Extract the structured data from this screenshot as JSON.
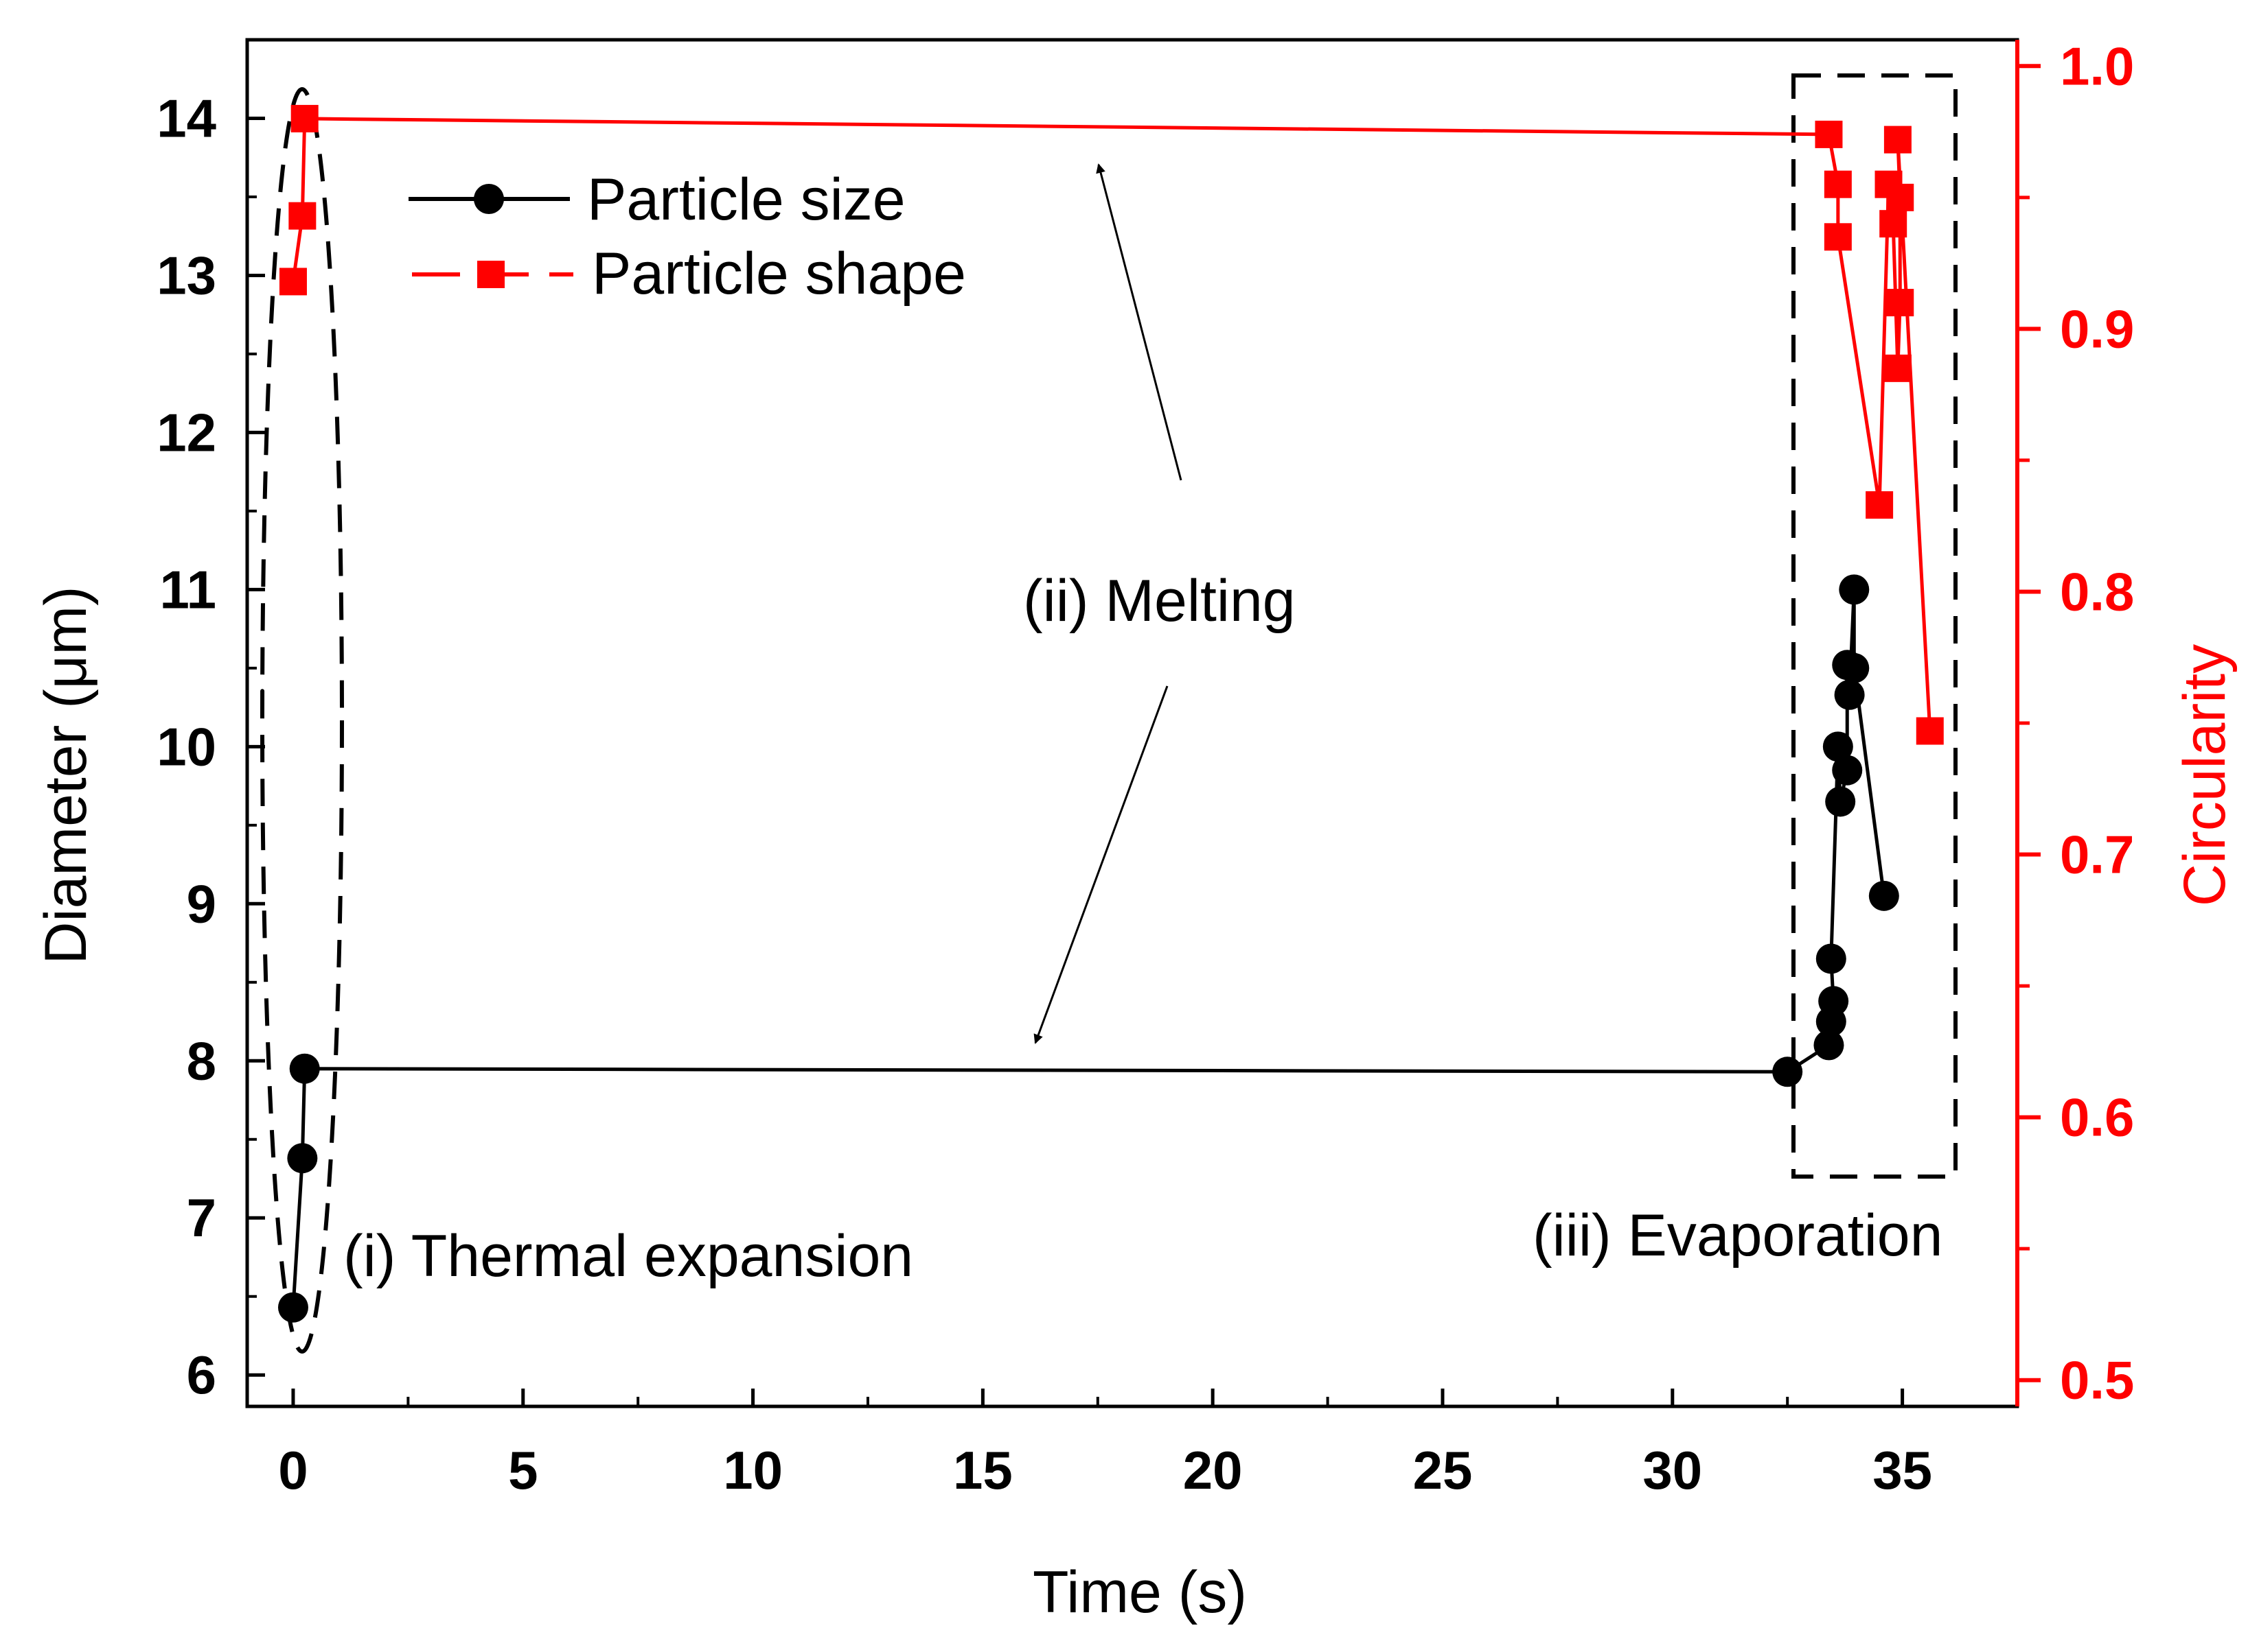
{
  "colors": {
    "left_axis": "#000000",
    "right_axis": "#ff0000",
    "series_size": "#000000",
    "series_shape": "#ff0000"
  },
  "chart_data": {
    "type": "line",
    "xlabel": "Time (s)",
    "ylabel_left": "Diameter (μm)",
    "ylabel_right": "Circularity",
    "xlim": [
      -1,
      37.5
    ],
    "ylim_left": [
      5.8,
      14.5
    ],
    "ylim_right": [
      0.49,
      1.01
    ],
    "x_ticks": [
      0,
      5,
      10,
      15,
      20,
      25,
      30,
      35
    ],
    "y_left_ticks": [
      6,
      7,
      8,
      9,
      10,
      11,
      12,
      13,
      14
    ],
    "y_right_ticks": [
      0.5,
      0.6,
      0.7,
      0.8,
      0.9,
      1.0
    ],
    "y_right_tick_labels": [
      "0.5",
      "0.6",
      "0.7",
      "0.8",
      "0.9",
      "1.0"
    ],
    "grid": false,
    "legend_position": "top-left",
    "series": [
      {
        "name": "Particle size",
        "axis": "left",
        "marker": "circle",
        "color": "#000000",
        "points": [
          [
            0.0,
            6.43
          ],
          [
            0.2,
            7.38
          ],
          [
            0.25,
            7.95
          ],
          [
            32.5,
            7.93
          ],
          [
            33.4,
            8.1
          ],
          [
            33.45,
            8.25
          ],
          [
            33.5,
            8.38
          ],
          [
            33.45,
            8.65
          ],
          [
            33.6,
            10.0
          ],
          [
            33.65,
            9.65
          ],
          [
            33.8,
            9.85
          ],
          [
            33.8,
            10.52
          ],
          [
            33.85,
            10.33
          ],
          [
            33.95,
            11.0
          ],
          [
            33.95,
            10.5
          ],
          [
            34.6,
            9.05
          ]
        ]
      },
      {
        "name": "Particle shape",
        "axis": "right",
        "marker": "square",
        "color": "#ff0000",
        "points": [
          [
            0.0,
            0.918
          ],
          [
            0.2,
            0.943
          ],
          [
            0.25,
            0.98
          ],
          [
            33.4,
            0.974
          ],
          [
            33.6,
            0.955
          ],
          [
            33.6,
            0.935
          ],
          [
            34.5,
            0.833
          ],
          [
            34.7,
            0.955
          ],
          [
            34.8,
            0.94
          ],
          [
            34.9,
            0.885
          ],
          [
            34.95,
            0.91
          ],
          [
            34.95,
            0.95
          ],
          [
            34.9,
            0.972
          ],
          [
            35.6,
            0.747
          ]
        ]
      }
    ],
    "annotations": [
      {
        "text": "(i) Thermal expansion"
      },
      {
        "text": "(ii) Melting"
      },
      {
        "text": "(iii) Evaporation"
      }
    ]
  }
}
